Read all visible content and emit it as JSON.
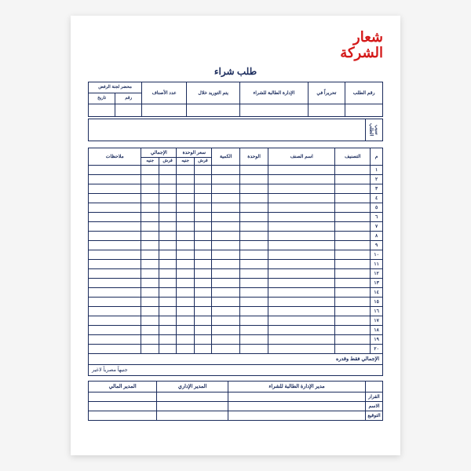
{
  "logo": {
    "line1": "شعار",
    "line2": "الشركة"
  },
  "title": "طلب شراء",
  "meta_headers": {
    "order_no": "رقم الطلب",
    "issued_on": "تحريراً في",
    "requesting_dept": "الإدارة الطالبة للشراء",
    "supply_within": "يتم التوريد خلال",
    "item_count": "عدد الأصناف",
    "rejection_group": "محضر لجنة الرفض",
    "rej_no": "رقم",
    "rej_date": "تاريخ"
  },
  "reason_label": "سبب الطلب",
  "item_headers": {
    "seq": "م",
    "classification": "التصنيف",
    "item_name": "اسم الصنف",
    "unit": "الوحدة",
    "qty": "الكمية",
    "unit_price": "سعر الوحدة",
    "total": "الإجمالي",
    "pound": "جنيه",
    "piastre": "قرش",
    "notes": "ملاحظات"
  },
  "row_count": 20,
  "arabic_digits": [
    "١",
    "٢",
    "٣",
    "٤",
    "٥",
    "٦",
    "٧",
    "٨",
    "٩",
    "١٠",
    "١١",
    "١٢",
    "١٣",
    "١٤",
    "١٥",
    "١٦",
    "١٧",
    "١٨",
    "١٩",
    "٢٠"
  ],
  "total_label": "الإجمالي فقط وقدره",
  "words_suffix": "جنيهاً مصرياً لاغير",
  "signatures": {
    "requesting_mgr": "مدير الإدارة الطالبة للشراء",
    "admin_mgr": "المدير الإداري",
    "finance_mgr": "المدير المالي",
    "decision": "القرار",
    "name": "الاسم",
    "signature": "التوقيع"
  },
  "colors": {
    "ink": "#1a2b5c",
    "logo": "#d41a1a",
    "paper": "#ffffff",
    "page_bg": "#f5f5f5"
  },
  "col_widths": {
    "seq": 14,
    "classification": 40,
    "item_name": 76,
    "unit": 32,
    "qty": 32,
    "price_sub": 20,
    "notes": 60
  }
}
